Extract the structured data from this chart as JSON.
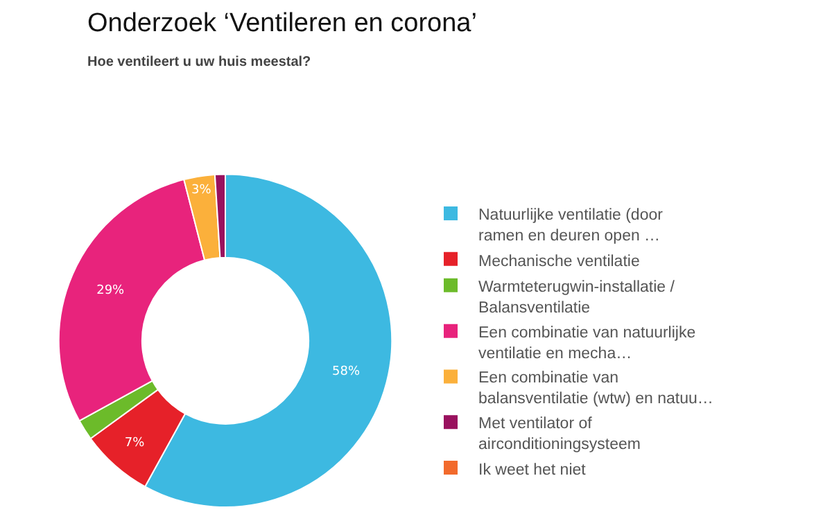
{
  "chart_data": {
    "type": "donut",
    "title": "Onderzoek ‘Ventileren en corona’",
    "subtitle": "Hoe ventileert u uw huis meestal?",
    "categories": [
      "Natuurlijke ventilatie (door ramen en deuren open …",
      "Mechanische ventilatie",
      "Warmteterugwin-installatie / Balansventilatie",
      "Een combinatie van natuurlijke ventilatie en mecha…",
      "Een combinatie van balansventilatie (wtw) en natuu…",
      "Met ventilator of airconditioningsysteem",
      "Ik weet het niet"
    ],
    "values": [
      58,
      7,
      2,
      29,
      3,
      1,
      0
    ],
    "value_labels": [
      "58%",
      "7%",
      null,
      "29%",
      "3%",
      null,
      null
    ],
    "colors": [
      "#3db9e1",
      "#e62129",
      "#6cbb2a",
      "#e8237c",
      "#fbb03b",
      "#99115e",
      "#f26a2c"
    ],
    "legend": "right"
  }
}
